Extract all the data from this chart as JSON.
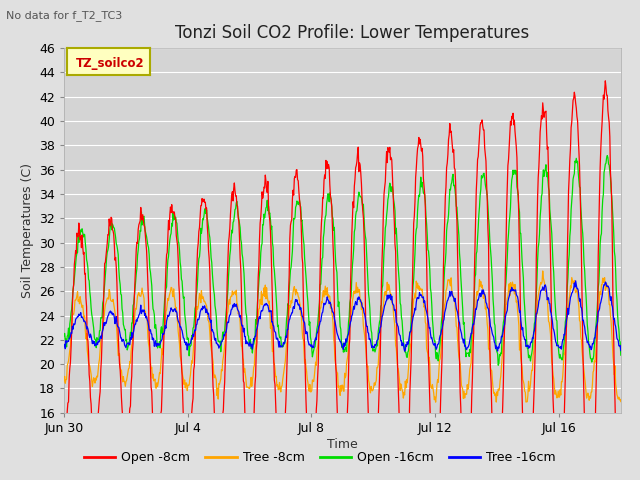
{
  "title": "Tonzi Soil CO2 Profile: Lower Temperatures",
  "subtitle": "No data for f_T2_TC3",
  "ylabel": "Soil Temperatures (C)",
  "xlabel": "Time",
  "legend_label": "TZ_soilco2",
  "ylim": [
    16,
    46
  ],
  "yticks": [
    16,
    18,
    20,
    22,
    24,
    26,
    28,
    30,
    32,
    34,
    36,
    38,
    40,
    42,
    44,
    46
  ],
  "colors": {
    "open_8cm": "#ff0000",
    "tree_8cm": "#ffa500",
    "open_16cm": "#00dd00",
    "tree_16cm": "#0000ff"
  },
  "series_labels": [
    "Open -8cm",
    "Tree -8cm",
    "Open -16cm",
    "Tree -16cm"
  ],
  "fig_bg": "#e0e0e0",
  "plot_bg": "#d4d4d4",
  "grid_color": "#ffffff",
  "num_days": 18,
  "points_per_day": 48,
  "title_fontsize": 12,
  "label_fontsize": 9,
  "tick_fontsize": 9,
  "legend_fontsize": 9,
  "xtick_positions": [
    0,
    4,
    8,
    12,
    16
  ],
  "xtick_labels": [
    "Jun 30",
    "Jul 4",
    "Jul 8",
    "Jul 12",
    "Jul 16"
  ]
}
